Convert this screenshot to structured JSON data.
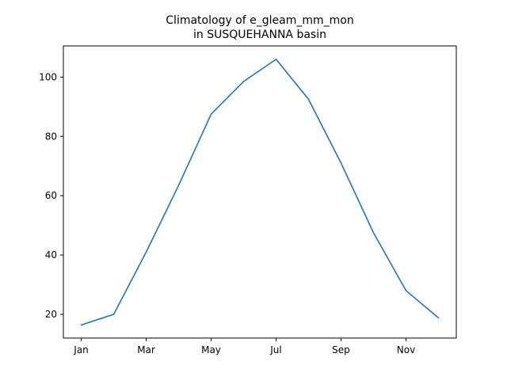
{
  "chart_data": {
    "type": "line",
    "title_line1": "Climatology of e_gleam_mm_mon",
    "title_line2": "in SUSQUEHANNA basin",
    "xlabel": "",
    "ylabel": "",
    "x": [
      "Jan",
      "Feb",
      "Mar",
      "Apr",
      "May",
      "Jun",
      "Jul",
      "Aug",
      "Sep",
      "Oct",
      "Nov",
      "Dec"
    ],
    "x_tick_labels": [
      "Jan",
      "Mar",
      "May",
      "Jul",
      "Sep",
      "Nov"
    ],
    "y_ticks": [
      20,
      40,
      60,
      80,
      100
    ],
    "series": [
      {
        "values": [
          16.4,
          20.0,
          41.0,
          63.5,
          87.5,
          98.5,
          106.0,
          92.5,
          71.0,
          47.5,
          28.0,
          18.8
        ],
        "color": "#1f77b4"
      }
    ],
    "ylim": [
      12.0,
      110.5
    ],
    "grid": false,
    "legend": "none"
  }
}
